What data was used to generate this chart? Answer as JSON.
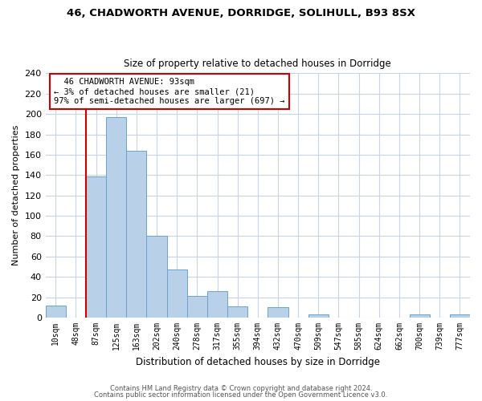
{
  "title1": "46, CHADWORTH AVENUE, DORRIDGE, SOLIHULL, B93 8SX",
  "title2": "Size of property relative to detached houses in Dorridge",
  "xlabel": "Distribution of detached houses by size in Dorridge",
  "ylabel": "Number of detached properties",
  "bar_labels": [
    "10sqm",
    "48sqm",
    "87sqm",
    "125sqm",
    "163sqm",
    "202sqm",
    "240sqm",
    "278sqm",
    "317sqm",
    "355sqm",
    "394sqm",
    "432sqm",
    "470sqm",
    "509sqm",
    "547sqm",
    "585sqm",
    "624sqm",
    "662sqm",
    "700sqm",
    "739sqm",
    "777sqm"
  ],
  "bar_heights": [
    12,
    0,
    139,
    197,
    164,
    80,
    47,
    21,
    26,
    11,
    0,
    10,
    0,
    3,
    0,
    0,
    0,
    0,
    3,
    0,
    3
  ],
  "bar_color": "#b8d0e8",
  "bar_edge_color": "#6ba3cc",
  "highlight_bar_index": 2,
  "highlight_color": "#cc0000",
  "annotation_title": "46 CHADWORTH AVENUE: 93sqm",
  "annotation_line1": "← 3% of detached houses are smaller (21)",
  "annotation_line2": "97% of semi-detached houses are larger (697) →",
  "annotation_box_color": "#ffffff",
  "annotation_box_edge": "#cc0000",
  "ylim": [
    0,
    240
  ],
  "yticks": [
    0,
    20,
    40,
    60,
    80,
    100,
    120,
    140,
    160,
    180,
    200,
    220,
    240
  ],
  "footer1": "Contains HM Land Registry data © Crown copyright and database right 2024.",
  "footer2": "Contains public sector information licensed under the Open Government Licence v3.0.",
  "bg_color": "#ffffff",
  "grid_color": "#c8d4e4"
}
